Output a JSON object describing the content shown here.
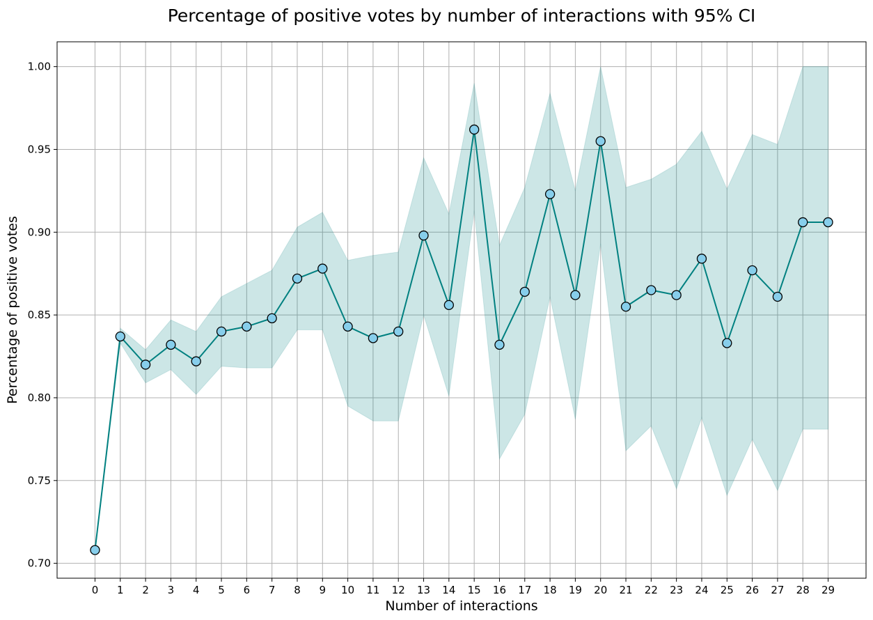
{
  "chart_data": {
    "type": "line",
    "title": "Percentage of positive votes by number of interactions with 95% CI",
    "xlabel": "Number of interactions",
    "ylabel": "Percentage of positive votes",
    "x": [
      0,
      1,
      2,
      3,
      4,
      5,
      6,
      7,
      8,
      9,
      10,
      11,
      12,
      13,
      14,
      15,
      16,
      17,
      18,
      19,
      20,
      21,
      22,
      23,
      24,
      25,
      26,
      27,
      28,
      29
    ],
    "x_tick_labels": [
      "0",
      "1",
      "2",
      "3",
      "4",
      "5",
      "6",
      "7",
      "8",
      "9",
      "10",
      "11",
      "12",
      "13",
      "14",
      "15",
      "16",
      "17",
      "18",
      "19",
      "20",
      "21",
      "22",
      "23",
      "24",
      "25",
      "26",
      "27",
      "28",
      "29"
    ],
    "y_ticks": [
      0.7,
      0.75,
      0.8,
      0.85,
      0.9,
      0.95,
      1.0
    ],
    "y_tick_labels": [
      "0.70",
      "0.75",
      "0.80",
      "0.85",
      "0.90",
      "0.95",
      "1.00"
    ],
    "xlim": [
      -1.5,
      30.5
    ],
    "ylim": [
      0.691,
      1.015
    ],
    "grid": true,
    "series": [
      {
        "values": [
          0.708,
          0.837,
          0.82,
          0.832,
          0.822,
          0.84,
          0.843,
          0.848,
          0.872,
          0.878,
          0.843,
          0.836,
          0.84,
          0.898,
          0.856,
          0.962,
          0.832,
          0.864,
          0.923,
          0.862,
          0.955,
          0.855,
          0.865,
          0.862,
          0.884,
          0.833,
          0.877,
          0.861,
          0.906,
          0.906
        ],
        "ci_lower": [
          0.708,
          0.833,
          0.809,
          0.817,
          0.802,
          0.819,
          0.818,
          0.818,
          0.841,
          0.841,
          0.795,
          0.786,
          0.786,
          0.85,
          0.801,
          0.913,
          0.763,
          0.79,
          0.861,
          0.787,
          0.893,
          0.768,
          0.783,
          0.745,
          0.788,
          0.741,
          0.775,
          0.744,
          0.781,
          0.781
        ],
        "ci_upper": [
          0.708,
          0.842,
          0.829,
          0.847,
          0.84,
          0.861,
          0.869,
          0.877,
          0.903,
          0.912,
          0.883,
          0.886,
          0.888,
          0.945,
          0.911,
          0.99,
          0.892,
          0.927,
          0.984,
          0.925,
          1.0,
          0.927,
          0.932,
          0.941,
          0.961,
          0.926,
          0.959,
          0.953,
          1.0,
          1.0
        ]
      }
    ],
    "colors": {
      "line": "#008080",
      "marker_fill": "#87ceeb",
      "marker_edge": "#000000",
      "ci_fill": "#008080",
      "grid": "#b0b0b0",
      "axes": "#000000"
    }
  }
}
